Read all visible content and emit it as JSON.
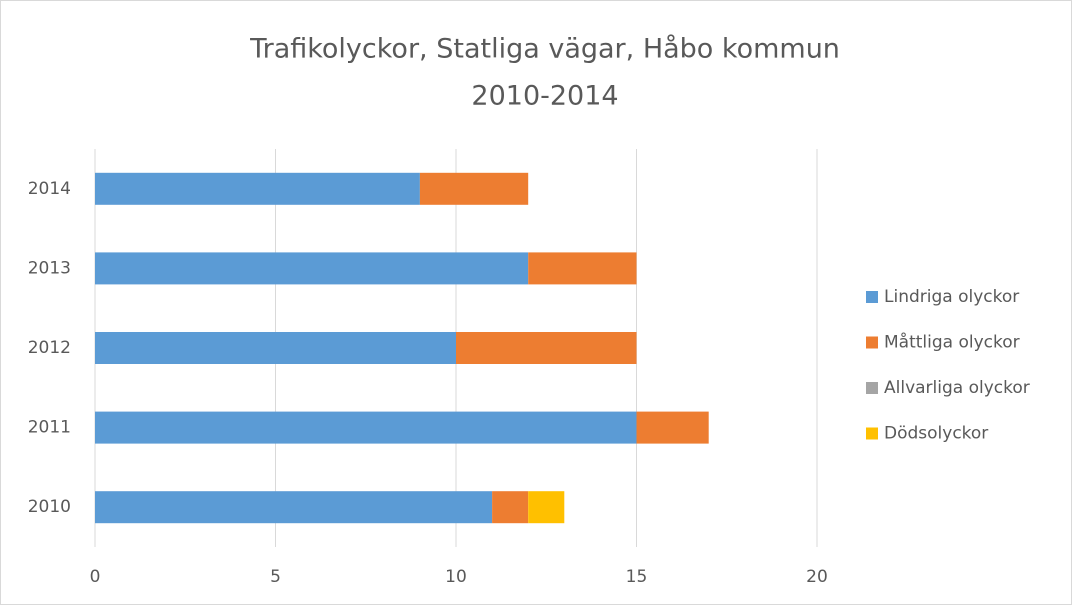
{
  "chart_data": {
    "type": "stacked-barh",
    "title": "Trafikolyckor, Statliga vägar, Håbo kommun",
    "subtitle": "2010-2014",
    "categories": [
      "2010",
      "2011",
      "2012",
      "2013",
      "2014"
    ],
    "series": [
      {
        "name": "Lindriga olyckor",
        "color": "#5b9bd5",
        "values": [
          11,
          15,
          10,
          12,
          9
        ]
      },
      {
        "name": "Måttliga olyckor",
        "color": "#ed7d31",
        "values": [
          1,
          2,
          5,
          3,
          3
        ]
      },
      {
        "name": "Allvarliga olyckor",
        "color": "#a5a5a5",
        "values": [
          0,
          0,
          0,
          0,
          0
        ]
      },
      {
        "name": "Dödsolyckor",
        "color": "#ffc000",
        "values": [
          1,
          0,
          0,
          0,
          0
        ]
      }
    ],
    "xlim": [
      0,
      20
    ],
    "xticks": [
      0,
      5,
      10,
      15,
      20
    ],
    "grid": true,
    "legend": "right"
  }
}
